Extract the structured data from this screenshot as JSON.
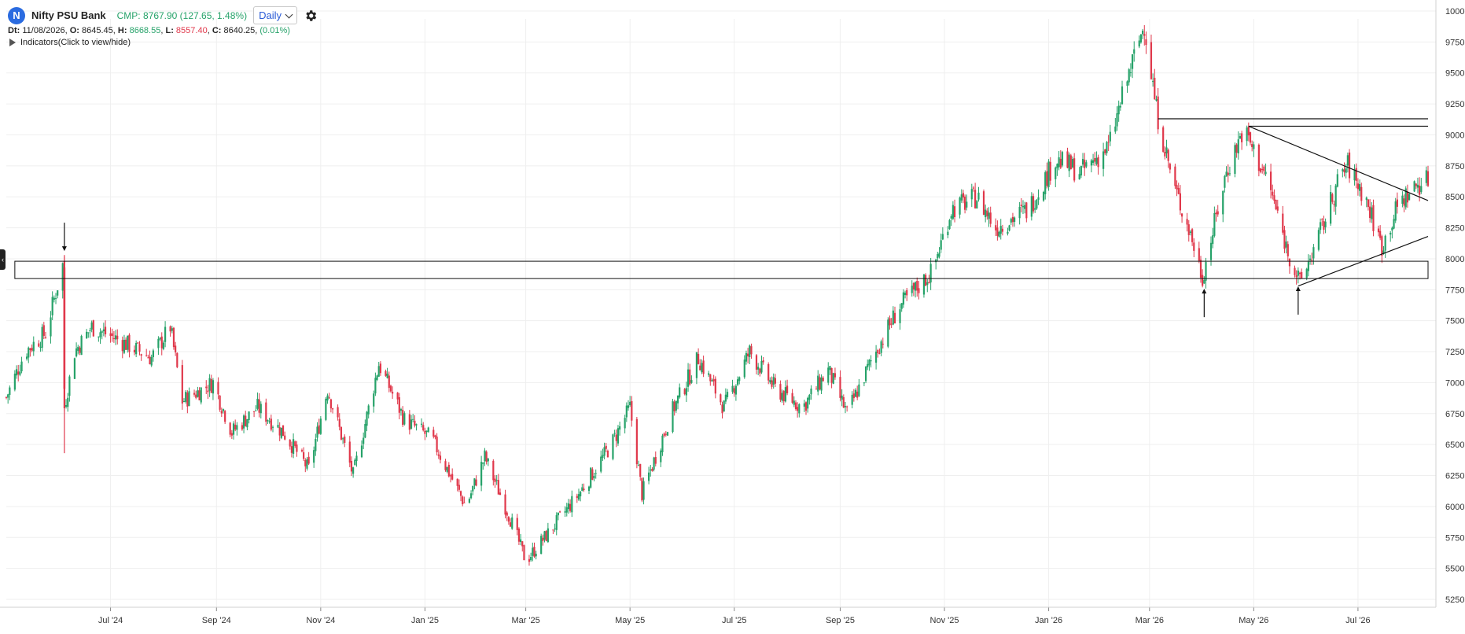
{
  "header": {
    "logo_letter": "N",
    "title": "Nifty PSU Bank",
    "cmp": "CMP: 8767.90 (127.65, 1.48%)",
    "interval": "Daily"
  },
  "ohlc": {
    "dt_label": "Dt:",
    "dt": "11/08/2026",
    "o_label": "O:",
    "o": "8645.45",
    "h_label": "H:",
    "h": "8668.55",
    "l_label": "L:",
    "l": "8557.40",
    "c_label": "C:",
    "c": "8640.25",
    "change": "(0.01%)"
  },
  "indicators_label": "Indicators(Click to view/hide)",
  "side_handle": "‹",
  "colors": {
    "up": "#26a269",
    "down": "#e0384b",
    "grid": "#efefef",
    "drawing": "#111111"
  },
  "icons": {
    "logo": "circle-letter-logo",
    "settings": "gear-icon",
    "collapse": "triangle-right-icon"
  },
  "chart_data": {
    "type": "candlestick",
    "ylim": [
      5250,
      10000
    ],
    "y_ticks": [
      10000,
      9750,
      9500,
      9250,
      9000,
      8750,
      8500,
      8250,
      8000,
      7750,
      7500,
      7250,
      7000,
      6750,
      6500,
      6250,
      6000,
      5750,
      5500,
      5250
    ],
    "x_ticks": [
      "Jul '24",
      "Sep '24",
      "Nov '24",
      "Jan '25",
      "Mar '25",
      "May '25",
      "Jul '25",
      "Sep '25",
      "Nov '25",
      "Jan '26",
      "Mar '26",
      "May '26",
      "Jul '26"
    ],
    "x_range": [
      "2024-05-01",
      "2026-08-11"
    ],
    "closing_path": [
      [
        "2024-05-01",
        6880
      ],
      [
        "2024-05-12",
        7250
      ],
      [
        "2024-05-24",
        7400
      ],
      [
        "2024-06-03",
        7950
      ],
      [
        "2024-06-04",
        6800
      ],
      [
        "2024-06-10",
        7250
      ],
      [
        "2024-06-20",
        7450
      ],
      [
        "2024-07-05",
        7350
      ],
      [
        "2024-07-25",
        7200
      ],
      [
        "2024-08-05",
        7450
      ],
      [
        "2024-08-12",
        6850
      ],
      [
        "2024-08-30",
        7000
      ],
      [
        "2024-09-10",
        6600
      ],
      [
        "2024-09-25",
        6800
      ],
      [
        "2024-10-10",
        6600
      ],
      [
        "2024-10-25",
        6300
      ],
      [
        "2024-11-05",
        6950
      ],
      [
        "2024-11-20",
        6250
      ],
      [
        "2024-12-05",
        7150
      ],
      [
        "2024-12-20",
        6700
      ],
      [
        "2025-01-05",
        6550
      ],
      [
        "2025-01-25",
        6000
      ],
      [
        "2025-02-05",
        6400
      ],
      [
        "2025-02-20",
        5900
      ],
      [
        "2025-03-01",
        5560
      ],
      [
        "2025-03-15",
        5800
      ],
      [
        "2025-04-01",
        6100
      ],
      [
        "2025-04-20",
        6500
      ],
      [
        "2025-05-01",
        6800
      ],
      [
        "2025-05-08",
        6100
      ],
      [
        "2025-05-25",
        6750
      ],
      [
        "2025-06-10",
        7200
      ],
      [
        "2025-06-25",
        6800
      ],
      [
        "2025-07-10",
        7250
      ],
      [
        "2025-07-25",
        6950
      ],
      [
        "2025-08-10",
        6800
      ],
      [
        "2025-08-25",
        7100
      ],
      [
        "2025-09-05",
        6750
      ],
      [
        "2025-09-20",
        7200
      ],
      [
        "2025-10-05",
        7600
      ],
      [
        "2025-10-25",
        7900
      ],
      [
        "2025-11-05",
        8400
      ],
      [
        "2025-11-20",
        8500
      ],
      [
        "2025-12-01",
        8250
      ],
      [
        "2025-12-20",
        8400
      ],
      [
        "2026-01-05",
        8800
      ],
      [
        "2026-01-20",
        8700
      ],
      [
        "2026-02-05",
        8900
      ],
      [
        "2026-02-15",
        9400
      ],
      [
        "2026-02-26",
        9900
      ],
      [
        "2026-03-05",
        9200
      ],
      [
        "2026-03-15",
        8600
      ],
      [
        "2026-03-25",
        8200
      ],
      [
        "2026-04-01",
        7850
      ],
      [
        "2026-04-05",
        8100
      ],
      [
        "2026-04-15",
        8700
      ],
      [
        "2026-04-25",
        9050
      ],
      [
        "2026-05-10",
        8600
      ],
      [
        "2026-05-20",
        8100
      ],
      [
        "2026-05-28",
        7800
      ],
      [
        "2026-06-10",
        8250
      ],
      [
        "2026-06-20",
        8650
      ],
      [
        "2026-06-25",
        8750
      ],
      [
        "2026-07-05",
        8500
      ],
      [
        "2026-07-15",
        8100
      ],
      [
        "2026-07-25",
        8450
      ],
      [
        "2026-08-05",
        8600
      ],
      [
        "2026-08-11",
        8640
      ]
    ],
    "annotations": {
      "zone": {
        "from_date": "2024-05-06",
        "to_date": "2026-08-11",
        "y_low": 7840,
        "y_high": 7980
      },
      "h_lines": [
        {
          "from_date": "2026-03-06",
          "to_date": "2026-08-11",
          "y": 9130
        },
        {
          "from_date": "2026-04-28",
          "to_date": "2026-08-11",
          "y": 9070
        }
      ],
      "trend_lines": [
        {
          "from": [
            "2026-04-28",
            9070
          ],
          "to": [
            "2026-08-11",
            8470
          ]
        },
        {
          "from": [
            "2026-05-27",
            7780
          ],
          "to": [
            "2026-08-11",
            8180
          ]
        }
      ],
      "arrows": [
        {
          "date": "2024-06-04",
          "direction": "down",
          "y": 8050
        },
        {
          "date": "2026-04-02",
          "direction": "up",
          "y": 7770
        },
        {
          "date": "2026-05-27",
          "direction": "up",
          "y": 7790
        }
      ]
    }
  }
}
